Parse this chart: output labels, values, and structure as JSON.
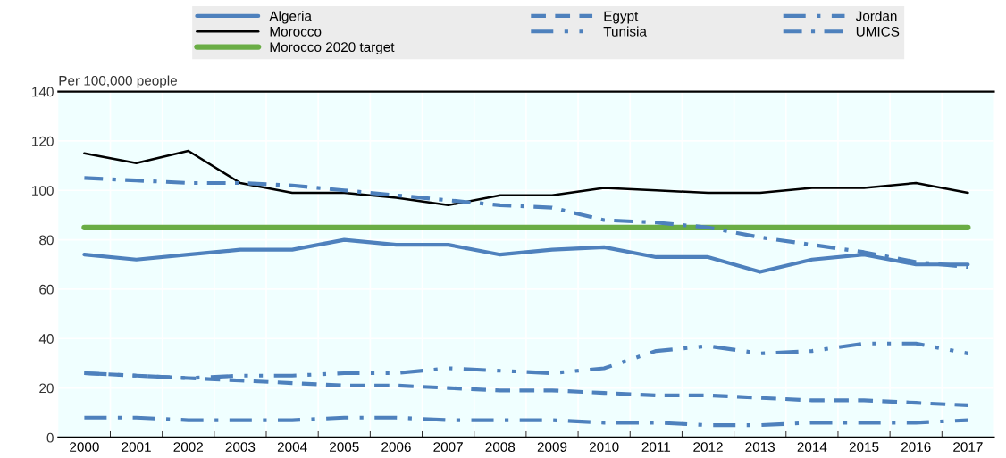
{
  "chart_data": {
    "type": "line",
    "ylabel": "Per 100,000 people",
    "categories": [
      "2000",
      "2001",
      "2002",
      "2003",
      "2004",
      "2005",
      "2006",
      "2007",
      "2008",
      "2009",
      "2010",
      "2011",
      "2012",
      "2013",
      "2014",
      "2015",
      "2016",
      "2017"
    ],
    "series": [
      {
        "name": "Algeria",
        "color": "#4e81bd",
        "line_style": "solid",
        "values": [
          74,
          72,
          74,
          76,
          76,
          80,
          78,
          78,
          74,
          76,
          77,
          73,
          73,
          67,
          72,
          74,
          70,
          70
        ]
      },
      {
        "name": "Egypt",
        "color": "#4e81bd",
        "line_style": "dashed",
        "values": [
          26,
          25,
          24,
          23,
          22,
          21,
          21,
          20,
          19,
          19,
          18,
          17,
          17,
          16,
          15,
          15,
          14,
          13
        ]
      },
      {
        "name": "Jordan",
        "color": "#4e81bd",
        "line_style": "dashdot",
        "values": [
          8,
          8,
          7,
          7,
          7,
          8,
          8,
          7,
          7,
          7,
          6,
          6,
          5,
          5,
          6,
          6,
          6,
          7
        ]
      },
      {
        "name": "Morocco",
        "color": "#000000",
        "line_style": "solid",
        "values": [
          115,
          111,
          116,
          103,
          99,
          99,
          97,
          94,
          98,
          98,
          101,
          100,
          99,
          99,
          101,
          101,
          103,
          99
        ]
      },
      {
        "name": "Tunisia",
        "color": "#4e81bd",
        "line_style": "dashdotdot",
        "values": [
          26,
          25,
          24,
          25,
          25,
          26,
          26,
          28,
          27,
          26,
          28,
          35,
          37,
          34,
          35,
          38,
          38,
          34
        ]
      },
      {
        "name": "UMICS",
        "color": "#4e81bd",
        "line_style": "longdashdot",
        "values": [
          105,
          104,
          103,
          103,
          102,
          100,
          98,
          96,
          94,
          93,
          88,
          87,
          85,
          81,
          78,
          75,
          71,
          69
        ]
      },
      {
        "name": "Morocco 2020 target",
        "color": "#6aad45",
        "line_style": "solid",
        "values": [
          85,
          85,
          85,
          85,
          85,
          85,
          85,
          85,
          85,
          85,
          85,
          85,
          85,
          85,
          85,
          85,
          85,
          85
        ]
      }
    ],
    "ylim": [
      0,
      140
    ],
    "yticks": [
      0,
      20,
      40,
      60,
      80,
      100,
      120,
      140
    ],
    "grid": true,
    "legend": "top"
  }
}
